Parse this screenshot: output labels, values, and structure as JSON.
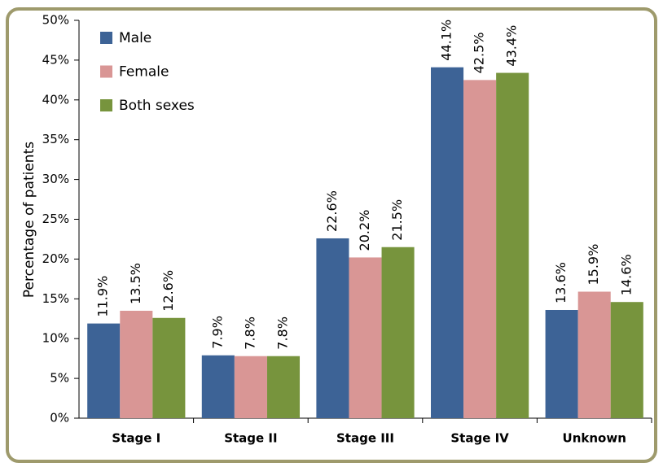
{
  "chart_data": {
    "type": "bar",
    "y_label": "Percentage of patients",
    "categories": [
      "Stage I",
      "Stage II",
      "Stage III",
      "Stage IV",
      "Unknown"
    ],
    "series": [
      {
        "name": "Male",
        "color": "#3d6396",
        "values": [
          11.9,
          7.9,
          22.6,
          44.1,
          13.6
        ],
        "value_labels": [
          "11.9%",
          "7.9%",
          "22.6%",
          "44.1%",
          "13.6%"
        ]
      },
      {
        "name": "Female",
        "color": "#d99695",
        "values": [
          13.5,
          7.8,
          20.2,
          42.5,
          15.9
        ],
        "value_labels": [
          "13.5%",
          "7.8%",
          "20.2%",
          "42.5%",
          "15.9%"
        ]
      },
      {
        "name": "Both sexes",
        "color": "#77943d",
        "values": [
          12.6,
          7.8,
          21.5,
          43.4,
          14.6
        ],
        "value_labels": [
          "12.6%",
          "7.8%",
          "21.5%",
          "43.4%",
          "14.6%"
        ]
      }
    ],
    "ylim": [
      0,
      50
    ],
    "yticks": [
      {
        "value": 0,
        "label": "0%"
      },
      {
        "value": 5,
        "label": "5%"
      },
      {
        "value": 10,
        "label": "10%"
      },
      {
        "value": 15,
        "label": "15%"
      },
      {
        "value": 20,
        "label": "20%"
      },
      {
        "value": 25,
        "label": "25%"
      },
      {
        "value": 30,
        "label": "30%"
      },
      {
        "value": 35,
        "label": "35%"
      },
      {
        "value": 40,
        "label": "40%"
      },
      {
        "value": 45,
        "label": "45%"
      },
      {
        "value": 50,
        "label": "50%"
      }
    ],
    "legend": "upper left"
  }
}
